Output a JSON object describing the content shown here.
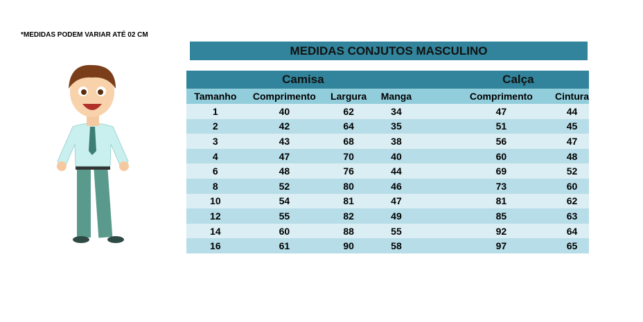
{
  "note": "*MEDIDAS PODEM VARIAR ATÉ 02 CM",
  "title": "MEDIDAS CONJUTOS MASCULINO",
  "groups": {
    "camisa": "Camisa",
    "calca": "Calça"
  },
  "columns": [
    "Tamanho",
    "Comprimento",
    "Largura",
    "Manga",
    "Comprimento",
    "Cintura"
  ],
  "rows": [
    [
      "1",
      "40",
      "62",
      "34",
      "47",
      "44"
    ],
    [
      "2",
      "42",
      "64",
      "35",
      "51",
      "45"
    ],
    [
      "3",
      "43",
      "68",
      "38",
      "56",
      "47"
    ],
    [
      "4",
      "47",
      "70",
      "40",
      "60",
      "48"
    ],
    [
      "6",
      "48",
      "76",
      "44",
      "69",
      "52"
    ],
    [
      "8",
      "52",
      "80",
      "46",
      "73",
      "60"
    ],
    [
      "10",
      "54",
      "81",
      "47",
      "81",
      "62"
    ],
    [
      "12",
      "55",
      "82",
      "49",
      "85",
      "63"
    ],
    [
      "14",
      "60",
      "88",
      "55",
      "92",
      "64"
    ],
    [
      "16",
      "61",
      "90",
      "58",
      "97",
      "65"
    ]
  ],
  "colors": {
    "header": "#31849b",
    "subheader": "#92cddc",
    "row_light": "#daeef3",
    "row_dark": "#b7dde8"
  }
}
